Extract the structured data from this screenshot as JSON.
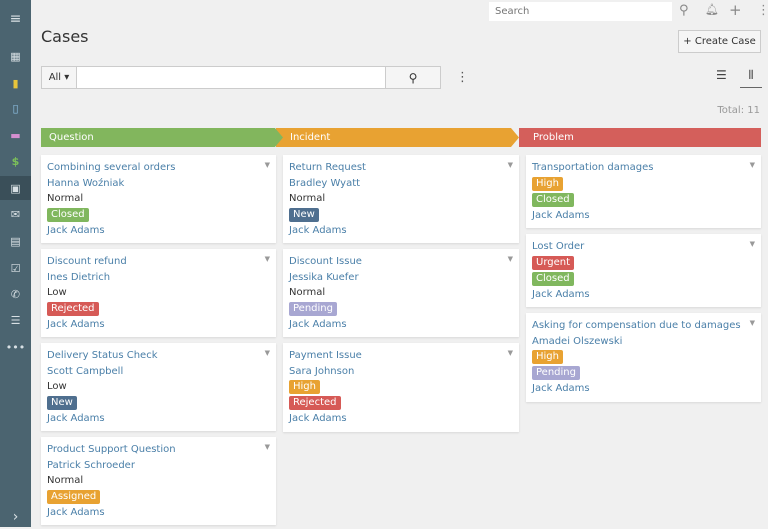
{
  "sidebar": {
    "items": [
      "menu-icon",
      "dashboard-icon",
      "accounts-icon",
      "contacts-icon",
      "leads-icon",
      "opportunities-icon",
      "cases-icon",
      "email-icon",
      "calendar-icon",
      "tasks-icon",
      "calls-icon",
      "lists-icon",
      "more-icon"
    ],
    "expand": "›"
  },
  "topbar": {
    "search_placeholder": "Search"
  },
  "page": {
    "title": "Cases",
    "create_label": "+ Create Case",
    "filter_all": "All ▾",
    "total": "Total: 11"
  },
  "colors": {
    "Question": "#82b65d",
    "Incident": "#e8a232",
    "Problem": "#d45f5b",
    "Closed": "#80b75e",
    "New": "#4f6f8f",
    "Rejected": "#d65a56",
    "Pending": "#a8a7d2",
    "High": "#e8a232",
    "Urgent": "#d65a56",
    "Assigned": "#e8a232"
  },
  "columns": [
    {
      "name": "Question",
      "cards": [
        {
          "name": "Combining several orders",
          "account": "Hanna Woźniak",
          "priority": "Normal",
          "status": "Closed",
          "user": "Jack Adams"
        },
        {
          "name": "Discount refund",
          "account": "Ines Dietrich",
          "priority": "Low",
          "status": "Rejected",
          "user": "Jack Adams"
        },
        {
          "name": "Delivery Status Check",
          "account": "Scott Campbell",
          "priority": "Low",
          "status": "New",
          "user": "Jack Adams"
        },
        {
          "name": "Product Support Question",
          "account": "Patrick Schroeder",
          "priority": "Normal",
          "status": "Assigned",
          "user": "Jack Adams"
        }
      ]
    },
    {
      "name": "Incident",
      "cards": [
        {
          "name": "Return Request",
          "account": "Bradley Wyatt",
          "priority": "Normal",
          "status": "New",
          "user": "Jack Adams"
        },
        {
          "name": "Discount Issue",
          "account": "Jessika Kuefer",
          "priority": "Normal",
          "status": "Pending",
          "user": "Jack Adams"
        },
        {
          "name": "Payment Issue",
          "account": "Sara Johnson",
          "priority": "High",
          "status": "Rejected",
          "user": "Jack Adams"
        }
      ]
    },
    {
      "name": "Problem",
      "cards": [
        {
          "name": "Transportation damages",
          "priority": "High",
          "status": "Closed",
          "user": "Jack Adams"
        },
        {
          "name": "Lost Order",
          "priority": "Urgent",
          "status": "Closed",
          "user": "Jack Adams"
        },
        {
          "name": "Asking for compensation due to damages",
          "account": "Amadei Olszewski",
          "priority": "High",
          "status": "Pending",
          "user": "Jack Adams"
        }
      ]
    }
  ]
}
